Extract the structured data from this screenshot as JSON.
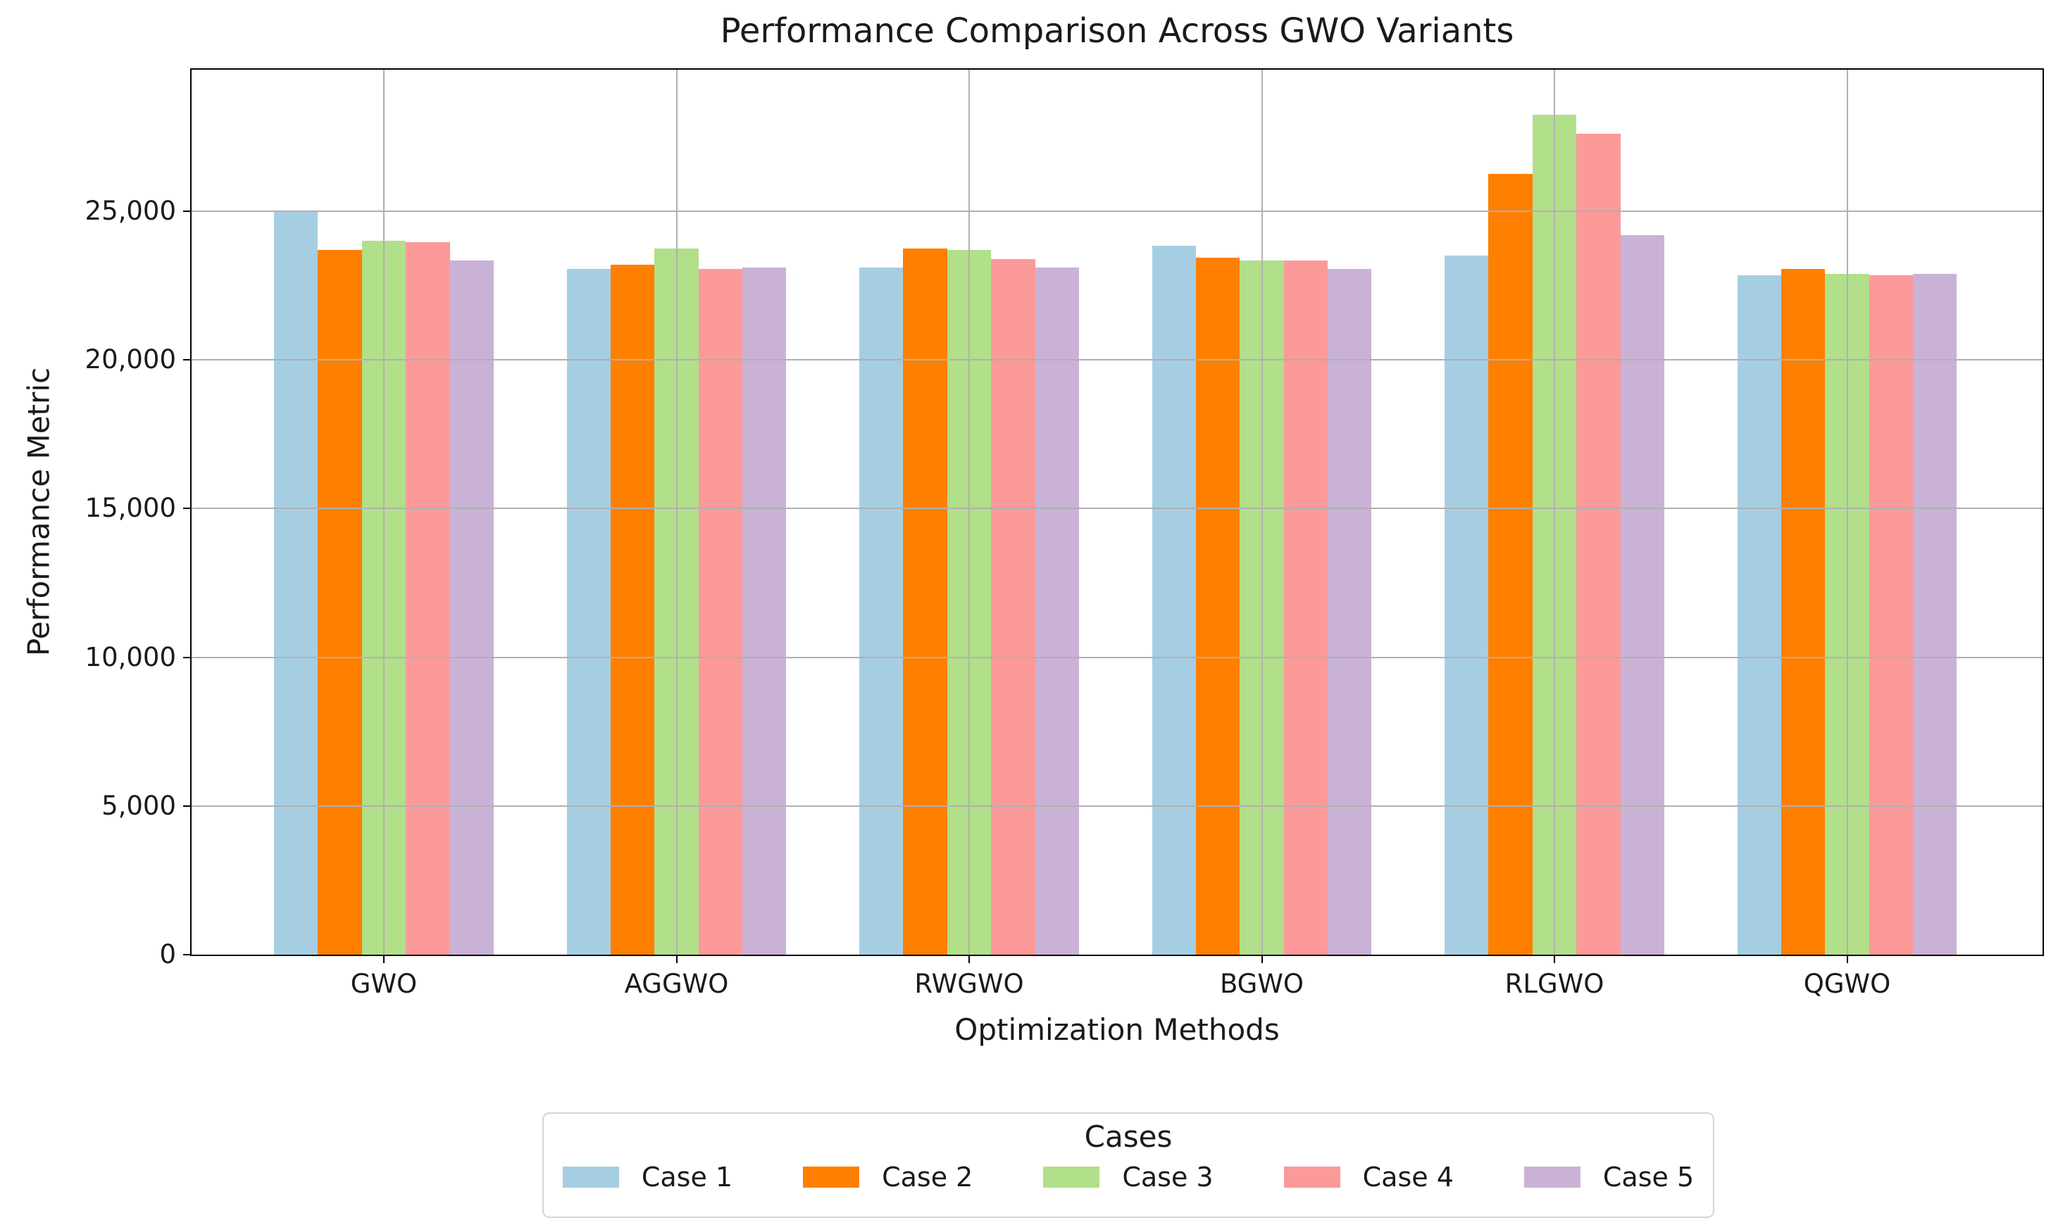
{
  "chart_data": {
    "type": "bar",
    "title": "Performance Comparison Across GWO Variants",
    "xlabel": "Optimization Methods",
    "ylabel": "Performance Metric",
    "categories": [
      "GWO",
      "AGGWO",
      "RWGWO",
      "BGWO",
      "RLGWO",
      "QGWO"
    ],
    "series": [
      {
        "name": "Case 1",
        "color": "#a6cee3",
        "values": [
          25000,
          23050,
          23100,
          23850,
          23500,
          22850
        ]
      },
      {
        "name": "Case 2",
        "color": "#ff7f00",
        "values": [
          23700,
          23200,
          23750,
          23450,
          26250,
          23050
        ]
      },
      {
        "name": "Case 3",
        "color": "#b2df8a",
        "values": [
          24000,
          23750,
          23700,
          23350,
          28250,
          22900
        ]
      },
      {
        "name": "Case 4",
        "color": "#fb9a99",
        "values": [
          23950,
          23050,
          23400,
          23350,
          27600,
          22850
        ]
      },
      {
        "name": "Case 5",
        "color": "#cab2d6",
        "values": [
          23350,
          23100,
          23100,
          23050,
          24200,
          22900
        ]
      }
    ],
    "ylim": [
      0,
      29760
    ],
    "yticks": [
      0,
      5000,
      10000,
      15000,
      20000,
      25000
    ],
    "ytick_labels": [
      "0",
      "5,000",
      "10,000",
      "15,000",
      "20,000",
      "25,000"
    ],
    "grid": true,
    "grid_color": "#b0b0b0",
    "grid_on_top_of_bars": true,
    "legend": {
      "title": "Cases",
      "position": "bottom"
    }
  }
}
